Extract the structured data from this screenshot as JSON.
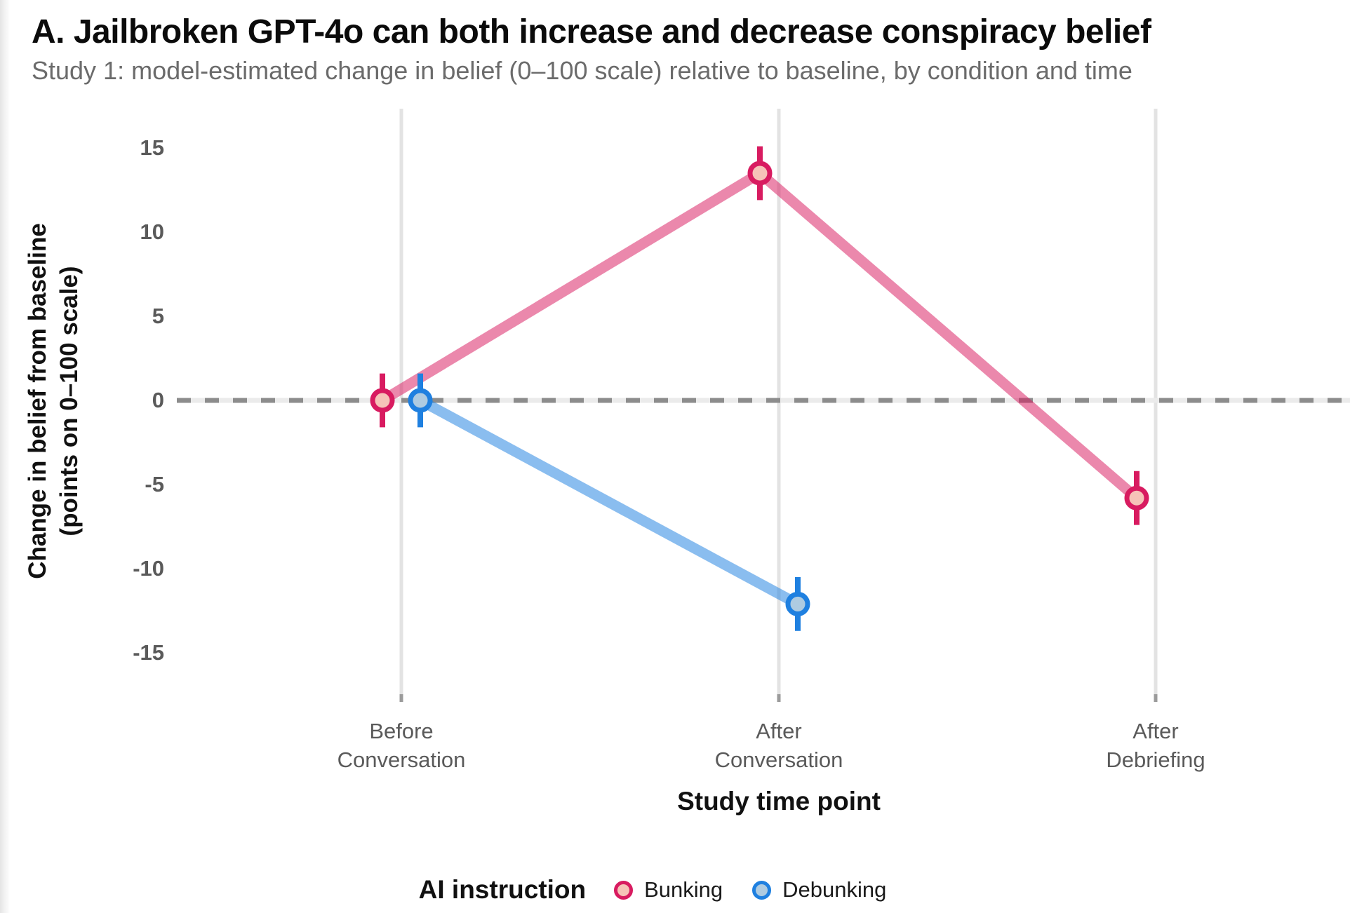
{
  "page": {
    "title": "A. Jailbroken GPT-4o can both increase and decrease conspiracy belief",
    "subtitle": "Study 1: model-estimated change in belief (0–100 scale) relative to baseline, by condition and time"
  },
  "chart_data": {
    "type": "line",
    "title": "A. Jailbroken GPT-4o can both increase and decrease conspiracy belief",
    "subtitle": "Study 1: model-estimated change in belief (0–100 scale) relative to baseline, by condition and time",
    "xlabel": "Study time point",
    "ylabel": "Change in belief from baseline (points on 0–100 scale)",
    "ylabel_lines": [
      "Change in belief from baseline",
      "(points on 0–100 scale)"
    ],
    "categories": [
      "Before\nConversation",
      "After\nConversation",
      "After\nDebriefing"
    ],
    "yticks": [
      15,
      10,
      5,
      0,
      -5,
      -10,
      -15
    ],
    "ylim": [
      -17.4,
      17.3
    ],
    "grid": {
      "vertical": true,
      "horizontal": false
    },
    "zero_reference_line": "dashed",
    "legend": {
      "title": "AI instruction",
      "position": "bottom"
    },
    "series": [
      {
        "name": "Bunking",
        "stroke": "#D81B60",
        "fill": "#F6C3B8",
        "line_color": "rgba(216,27,96,0.52)",
        "values": [
          0,
          13.5,
          -5.8
        ],
        "ci_low": [
          -1.6,
          11.9,
          -7.4
        ],
        "ci_high": [
          1.6,
          15.1,
          -4.2
        ]
      },
      {
        "name": "Debunking",
        "stroke": "#1F80E0",
        "fill": "#AECBE1",
        "line_color": "rgba(31,128,224,0.52)",
        "values": [
          0,
          -12.1,
          null
        ],
        "ci_low": [
          -1.6,
          -13.7,
          null
        ],
        "ci_high": [
          1.6,
          -10.5,
          null
        ]
      }
    ]
  },
  "colors": {
    "gridline": "#E3E3E3",
    "zero_dash": "#8C8C8C",
    "zero_underlay": "#EBEBEB",
    "axis_tick": "#9B9B9B",
    "axis_text": "#5A5A5A",
    "subtitle_text": "#6B6B6B"
  }
}
